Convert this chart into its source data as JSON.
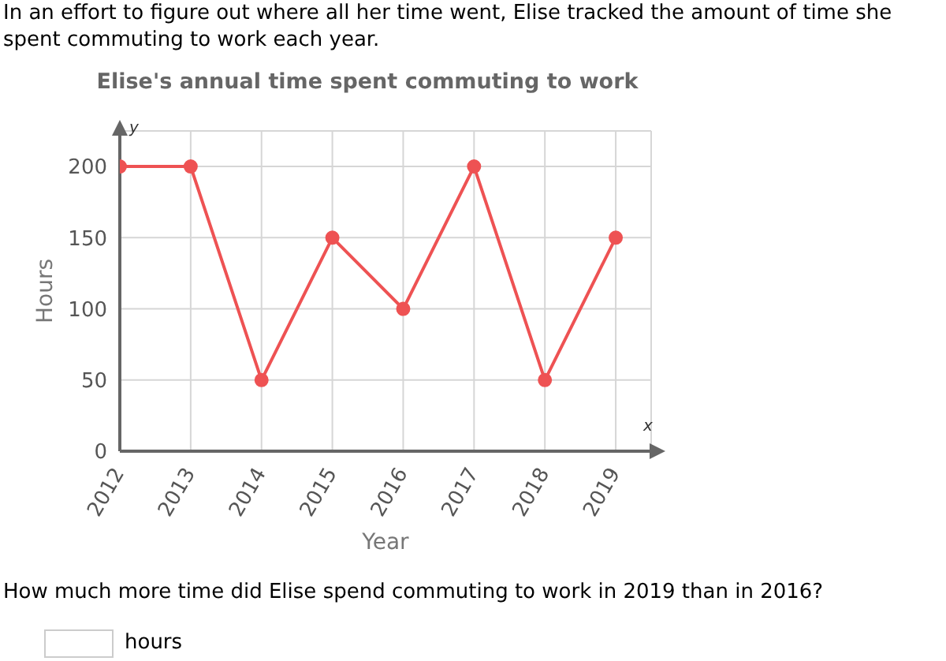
{
  "chart_data": {
    "type": "line",
    "title": "Elise's annual time spent commuting to work",
    "xlabel": "Year",
    "ylabel": "Hours",
    "categories": [
      "2012",
      "2013",
      "2014",
      "2015",
      "2016",
      "2017",
      "2018",
      "2019"
    ],
    "series": [
      {
        "color": "#ee5253",
        "values": [
          200,
          200,
          50,
          150,
          100,
          200,
          50,
          150
        ]
      }
    ],
    "ylim": [
      0,
      225
    ],
    "yticks": [
      0,
      50,
      100,
      150,
      200
    ],
    "grid": true,
    "marker": "circle",
    "line_style": "solid",
    "annotations": [
      "In an effort to figure out where all her time went, Elise tracked the amount of time she spent commuting to work each year.",
      "y",
      "x",
      "How much more time did Elise spend commuting to work in 2019 than in 2016?",
      "hours"
    ]
  }
}
